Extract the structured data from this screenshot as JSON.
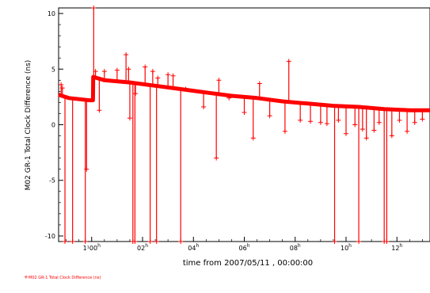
{
  "chart_data": {
    "type": "scatter",
    "xlabel": "time from 2007/05/11 , 00:00:00",
    "ylabel": "M02 GR-1 Total Clock Difference (ns)",
    "xlim": [
      -1.3,
      13.3
    ],
    "ylim": [
      -10.5,
      10.5
    ],
    "color": "#ff0000",
    "legend": {
      "label": "M02 GR-1 Total Clock Difference (ns)",
      "placement": "bottom-left"
    },
    "y_ticks": [
      {
        "value": 10,
        "label": "10"
      },
      {
        "value": 5,
        "label": "5"
      },
      {
        "value": 0,
        "label": "0"
      },
      {
        "value": -5,
        "label": "-5"
      },
      {
        "value": -10,
        "label": "-10"
      }
    ],
    "x_ticks": [
      {
        "value": 0,
        "label": "1¹00"
      },
      {
        "value": 2,
        "label": "02"
      },
      {
        "value": 4,
        "label": "04"
      },
      {
        "value": 6,
        "label": "06"
      },
      {
        "value": 8,
        "label": "08"
      },
      {
        "value": 10,
        "label": "10"
      },
      {
        "value": 12,
        "label": "12"
      }
    ],
    "x_tick_superscript": "h",
    "baseline": [
      {
        "x": -1.3,
        "y": 2.7
      },
      {
        "x": -0.9,
        "y": 2.4
      },
      {
        "x": -0.5,
        "y": 2.3
      },
      {
        "x": -0.1,
        "y": 2.2
      },
      {
        "x": 0.05,
        "y": 2.2
      },
      {
        "x": 0.06,
        "y": 4.3
      },
      {
        "x": 0.5,
        "y": 4.0
      },
      {
        "x": 1.5,
        "y": 3.8
      },
      {
        "x": 2.5,
        "y": 3.5
      },
      {
        "x": 3.5,
        "y": 3.2
      },
      {
        "x": 4.5,
        "y": 2.9
      },
      {
        "x": 5.5,
        "y": 2.6
      },
      {
        "x": 6.5,
        "y": 2.4
      },
      {
        "x": 7.5,
        "y": 2.1
      },
      {
        "x": 8.5,
        "y": 1.9
      },
      {
        "x": 9.5,
        "y": 1.7
      },
      {
        "x": 10.5,
        "y": 1.6
      },
      {
        "x": 11.5,
        "y": 1.4
      },
      {
        "x": 12.5,
        "y": 1.3
      },
      {
        "x": 13.3,
        "y": 1.3
      }
    ],
    "spikes": [
      {
        "x": -1.2,
        "y": 3.6
      },
      {
        "x": -1.15,
        "y": 3.3
      },
      {
        "x": -1.05,
        "y": -10.5
      },
      {
        "x": -0.75,
        "y": -10.5
      },
      {
        "x": -0.25,
        "y": -10.5
      },
      {
        "x": -0.2,
        "y": -4.0
      },
      {
        "x": 0.3,
        "y": 1.3
      },
      {
        "x": 0.08,
        "y": 10.5
      },
      {
        "x": 0.15,
        "y": 4.8
      },
      {
        "x": 0.5,
        "y": 4.8
      },
      {
        "x": 1.0,
        "y": 4.9
      },
      {
        "x": 1.35,
        "y": 6.3
      },
      {
        "x": 1.45,
        "y": 5.0
      },
      {
        "x": 1.5,
        "y": 0.6
      },
      {
        "x": 1.62,
        "y": -10.5
      },
      {
        "x": 1.7,
        "y": -10.5
      },
      {
        "x": 1.72,
        "y": 2.8
      },
      {
        "x": 2.1,
        "y": 5.2
      },
      {
        "x": 2.3,
        "y": -10.5
      },
      {
        "x": 2.4,
        "y": 4.8
      },
      {
        "x": 2.55,
        "y": -10.5
      },
      {
        "x": 2.6,
        "y": 4.2
      },
      {
        "x": 3.0,
        "y": 4.5
      },
      {
        "x": 3.2,
        "y": 4.4
      },
      {
        "x": 3.5,
        "y": -10.5
      },
      {
        "x": 3.7,
        "y": 3.2
      },
      {
        "x": 4.4,
        "y": 1.6
      },
      {
        "x": 4.9,
        "y": -3.0
      },
      {
        "x": 5.0,
        "y": 4.0
      },
      {
        "x": 5.4,
        "y": 2.4
      },
      {
        "x": 6.0,
        "y": 1.1
      },
      {
        "x": 6.35,
        "y": -1.2
      },
      {
        "x": 6.6,
        "y": 3.7
      },
      {
        "x": 7.0,
        "y": 0.8
      },
      {
        "x": 7.6,
        "y": -0.6
      },
      {
        "x": 7.75,
        "y": 5.7
      },
      {
        "x": 8.2,
        "y": 0.4
      },
      {
        "x": 8.6,
        "y": 0.3
      },
      {
        "x": 9.0,
        "y": 0.2
      },
      {
        "x": 9.25,
        "y": 0.1
      },
      {
        "x": 9.55,
        "y": -10.5
      },
      {
        "x": 9.7,
        "y": 0.4
      },
      {
        "x": 10.0,
        "y": -0.8
      },
      {
        "x": 10.35,
        "y": 0.0
      },
      {
        "x": 10.5,
        "y": -10.5
      },
      {
        "x": 10.65,
        "y": -0.4
      },
      {
        "x": 10.8,
        "y": -1.2
      },
      {
        "x": 11.1,
        "y": -0.5
      },
      {
        "x": 11.3,
        "y": 0.2
      },
      {
        "x": 11.5,
        "y": -10.5
      },
      {
        "x": 11.6,
        "y": -10.5
      },
      {
        "x": 11.8,
        "y": -1.0
      },
      {
        "x": 12.1,
        "y": 0.4
      },
      {
        "x": 12.4,
        "y": -0.6
      },
      {
        "x": 12.7,
        "y": 0.2
      },
      {
        "x": 13.0,
        "y": 0.5
      }
    ]
  }
}
